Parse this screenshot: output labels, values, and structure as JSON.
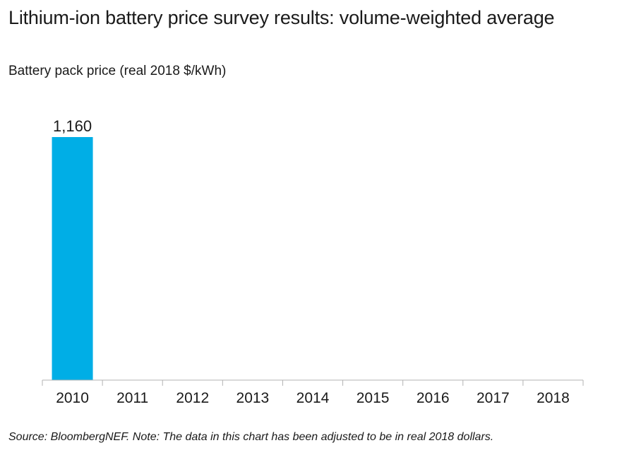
{
  "title": "Lithium-ion battery price survey results: volume-weighted average",
  "subtitle": "Battery pack price (real 2018 $/kWh)",
  "source": "Source: BloombergNEF. Note: The data in this chart has been adjusted to be in real 2018 dollars.",
  "colors": {
    "bar": "#00aee6",
    "axis": "#b3b3b3",
    "text": "#1a1a1a"
  },
  "chart_data": {
    "type": "bar",
    "title": "Lithium-ion battery price survey results: volume-weighted average",
    "ylabel": "Battery pack price (real 2018 $/kWh)",
    "xlabel": "",
    "categories": [
      "2010",
      "2011",
      "2012",
      "2013",
      "2014",
      "2015",
      "2016",
      "2017",
      "2018"
    ],
    "series": [
      {
        "name": "Battery pack price",
        "values": [
          1160,
          null,
          null,
          null,
          null,
          null,
          null,
          null,
          null
        ]
      }
    ],
    "data_labels": [
      "1,160",
      "",
      "",
      "",
      "",
      "",
      "",
      "",
      ""
    ],
    "ylim": [
      0,
      1160
    ],
    "grid": false,
    "legend": "none"
  }
}
